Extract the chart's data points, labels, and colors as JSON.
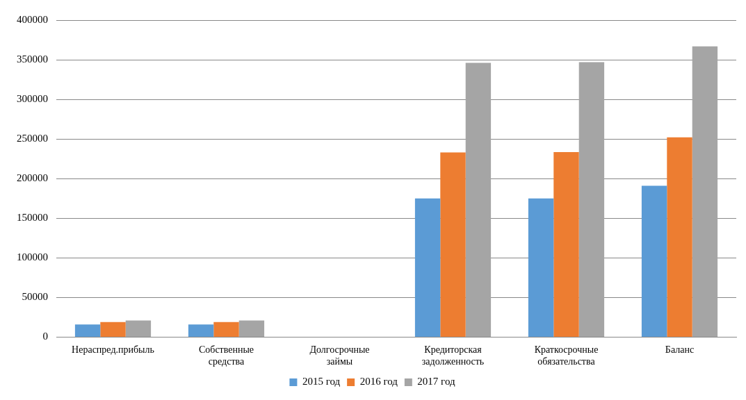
{
  "chart_data": {
    "type": "bar",
    "categories": [
      "Нераспред.прибыль",
      "Собственные средства",
      "Долгосрочные займы",
      "Кредиторская задолженность",
      "Краткосрочные обязательства",
      "Баланс"
    ],
    "series": [
      {
        "name": "2015 год",
        "color": "#5b9bd5",
        "values": [
          16000,
          16000,
          0,
          175000,
          175000,
          191000
        ]
      },
      {
        "name": "2016 год",
        "color": "#ed7d31",
        "values": [
          19000,
          19000,
          0,
          233000,
          233500,
          252000
        ]
      },
      {
        "name": "2017 год",
        "color": "#a5a5a5",
        "values": [
          21000,
          21000,
          0,
          346000,
          347000,
          367000
        ]
      }
    ],
    "ylim": [
      0,
      400000
    ],
    "yticks": [
      0,
      50000,
      100000,
      150000,
      200000,
      250000,
      300000,
      350000,
      400000
    ],
    "grid": "y",
    "legend": "bottom"
  }
}
